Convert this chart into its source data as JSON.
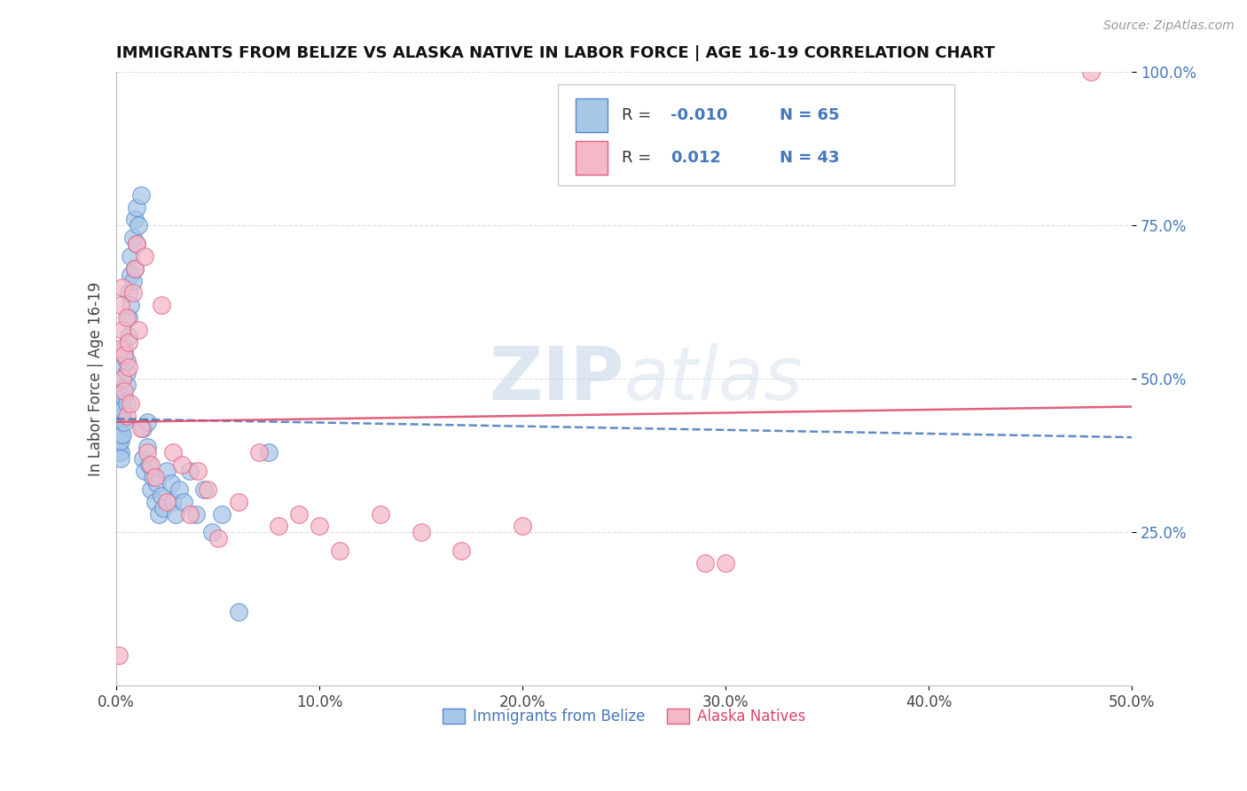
{
  "title": "IMMIGRANTS FROM BELIZE VS ALASKA NATIVE IN LABOR FORCE | AGE 16-19 CORRELATION CHART",
  "source": "Source: ZipAtlas.com",
  "legend_label1": "Immigrants from Belize",
  "legend_label2": "Alaska Natives",
  "ylabel": "In Labor Force | Age 16-19",
  "xmin": 0.0,
  "xmax": 0.5,
  "ymin": 0.0,
  "ymax": 1.0,
  "xticks": [
    0.0,
    0.1,
    0.2,
    0.3,
    0.4,
    0.5
  ],
  "xticklabels": [
    "0.0%",
    "10.0%",
    "20.0%",
    "30.0%",
    "40.0%",
    "50.0%"
  ],
  "yticks": [
    0.25,
    0.5,
    0.75,
    1.0
  ],
  "yticklabels": [
    "25.0%",
    "50.0%",
    "75.0%",
    "100.0%"
  ],
  "blue_color": "#a8c8e8",
  "pink_color": "#f5b8c8",
  "blue_edge_color": "#5588cc",
  "pink_edge_color": "#e06080",
  "blue_line_color": "#4477bb",
  "pink_line_color": "#dd4466",
  "grid_color": "#dddddd",
  "watermark_color": "#c8d8e8",
  "blue_R": -0.01,
  "pink_R": 0.012,
  "blue_N": 65,
  "pink_N": 43,
  "blue_trend_y0": 0.435,
  "blue_trend_y1": 0.405,
  "pink_trend_y0": 0.43,
  "pink_trend_y1": 0.455,
  "blue_x": [
    0.001,
    0.001,
    0.001,
    0.001,
    0.001,
    0.002,
    0.002,
    0.002,
    0.002,
    0.002,
    0.002,
    0.003,
    0.003,
    0.003,
    0.003,
    0.003,
    0.003,
    0.004,
    0.004,
    0.004,
    0.004,
    0.005,
    0.005,
    0.005,
    0.005,
    0.006,
    0.006,
    0.006,
    0.007,
    0.007,
    0.007,
    0.008,
    0.008,
    0.009,
    0.009,
    0.01,
    0.01,
    0.011,
    0.012,
    0.013,
    0.013,
    0.014,
    0.015,
    0.015,
    0.016,
    0.017,
    0.018,
    0.019,
    0.02,
    0.021,
    0.022,
    0.023,
    0.025,
    0.027,
    0.028,
    0.029,
    0.031,
    0.033,
    0.036,
    0.039,
    0.043,
    0.047,
    0.052,
    0.06,
    0.075
  ],
  "blue_y": [
    0.4,
    0.38,
    0.42,
    0.39,
    0.44,
    0.41,
    0.43,
    0.38,
    0.46,
    0.4,
    0.37,
    0.44,
    0.41,
    0.48,
    0.5,
    0.52,
    0.45,
    0.47,
    0.54,
    0.43,
    0.55,
    0.49,
    0.51,
    0.46,
    0.53,
    0.57,
    0.6,
    0.64,
    0.62,
    0.67,
    0.7,
    0.66,
    0.73,
    0.68,
    0.76,
    0.72,
    0.78,
    0.75,
    0.8,
    0.42,
    0.37,
    0.35,
    0.39,
    0.43,
    0.36,
    0.32,
    0.34,
    0.3,
    0.33,
    0.28,
    0.31,
    0.29,
    0.35,
    0.33,
    0.3,
    0.28,
    0.32,
    0.3,
    0.35,
    0.28,
    0.32,
    0.25,
    0.28,
    0.12,
    0.38
  ],
  "pink_x": [
    0.001,
    0.002,
    0.002,
    0.003,
    0.003,
    0.003,
    0.004,
    0.004,
    0.005,
    0.005,
    0.006,
    0.006,
    0.007,
    0.008,
    0.009,
    0.01,
    0.011,
    0.012,
    0.014,
    0.015,
    0.017,
    0.019,
    0.022,
    0.025,
    0.028,
    0.032,
    0.036,
    0.04,
    0.045,
    0.05,
    0.06,
    0.07,
    0.08,
    0.09,
    0.1,
    0.11,
    0.13,
    0.15,
    0.17,
    0.2,
    0.29,
    0.3,
    0.48
  ],
  "pink_y": [
    0.05,
    0.55,
    0.62,
    0.58,
    0.5,
    0.65,
    0.48,
    0.54,
    0.6,
    0.44,
    0.56,
    0.52,
    0.46,
    0.64,
    0.68,
    0.72,
    0.58,
    0.42,
    0.7,
    0.38,
    0.36,
    0.34,
    0.62,
    0.3,
    0.38,
    0.36,
    0.28,
    0.35,
    0.32,
    0.24,
    0.3,
    0.38,
    0.26,
    0.28,
    0.26,
    0.22,
    0.28,
    0.25,
    0.22,
    0.26,
    0.2,
    0.2,
    1.0
  ]
}
